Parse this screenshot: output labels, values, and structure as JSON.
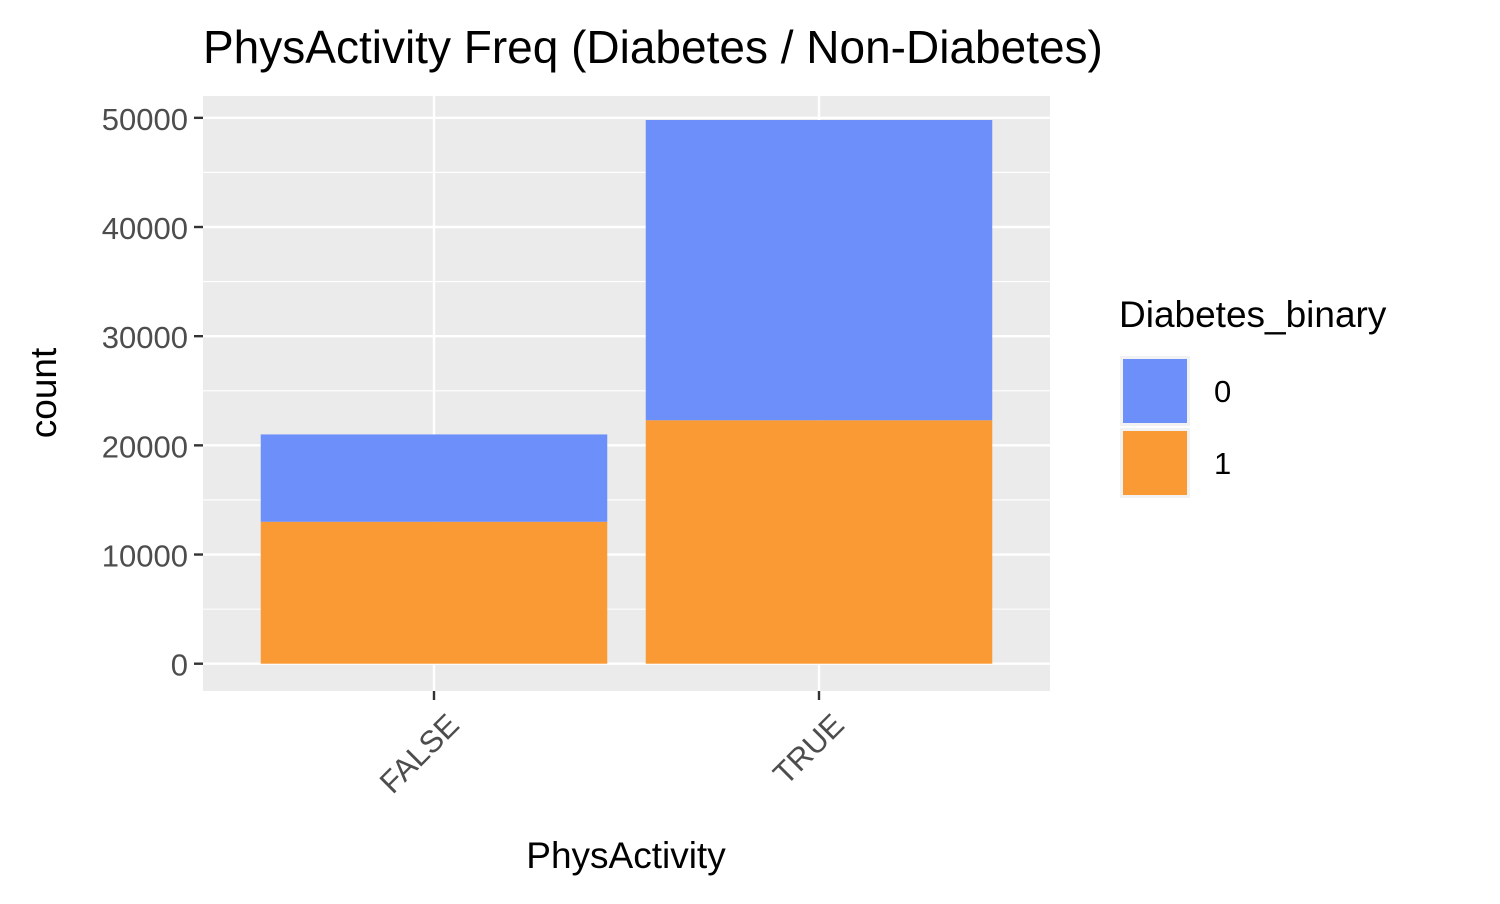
{
  "chart_data": {
    "type": "bar",
    "stacked": true,
    "title": "PhysActivity Freq (Diabetes / Non-Diabetes)",
    "xlabel": "PhysActivity",
    "ylabel": "count",
    "categories": [
      "FALSE",
      "TRUE"
    ],
    "series": [
      {
        "name": "0",
        "values": [
          8000,
          27500
        ],
        "color": "#6c8ffa"
      },
      {
        "name": "1",
        "values": [
          13000,
          22300
        ],
        "color": "#fa9a35"
      }
    ],
    "ylim": [
      -2500,
      52000
    ],
    "yticks": [
      0,
      10000,
      20000,
      30000,
      40000,
      50000
    ],
    "ytick_labels": [
      "0",
      "10000",
      "20000",
      "30000",
      "40000",
      "50000"
    ],
    "grid": true,
    "legend": {
      "title": "Diabetes_binary",
      "position": "right",
      "entries": [
        "0",
        "1"
      ]
    },
    "colors": {
      "panel_background": "#ebebeb",
      "grid": "#ffffff",
      "axis_text": "#4d4d4d",
      "title_text": "#000000"
    }
  }
}
